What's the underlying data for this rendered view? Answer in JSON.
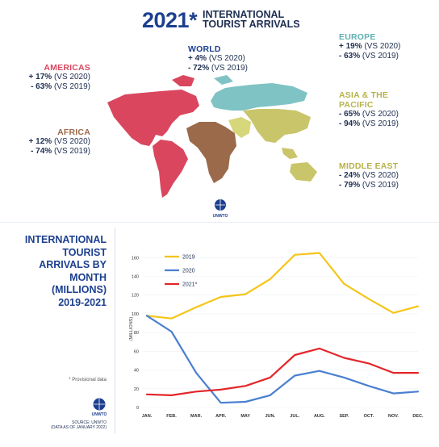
{
  "header": {
    "year": "2021*",
    "title_line1": "INTERNATIONAL",
    "title_line2": "TOURIST ARRIVALS"
  },
  "regions": {
    "world": {
      "name": "WORLD",
      "l1b": "+ 4%",
      "l1": " (VS 2020)",
      "l2b": "- 72%",
      "l2": " (VS 2019)"
    },
    "americas": {
      "name": "AMERICAS",
      "l1b": "+ 17%",
      "l1": " (VS 2020)",
      "l2b": "- 63%",
      "l2": " (VS 2019)"
    },
    "africa": {
      "name": "AFRICA",
      "l1b": "+ 12%",
      "l1": " (VS 2020)",
      "l2b": "- 74%",
      "l2": " (VS 2019)"
    },
    "europe": {
      "name": "EUROPE",
      "l1b": "+ 19%",
      "l1": " (VS 2020)",
      "l2b": "- 63%",
      "l2": " (VS 2019)"
    },
    "asia": {
      "name1": "ASIA & THE",
      "name2": "PACIFIC",
      "l1b": "- 65%",
      "l1": " (VS 2020)",
      "l2b": "- 94%",
      "l2": " (VS 2019)"
    },
    "middle_east": {
      "name": "MIDDLE EAST",
      "l1b": "- 24%",
      "l1": " (VS 2020)",
      "l2b": "- 79%",
      "l2": " (VS 2019)"
    }
  },
  "logo": {
    "text": "UNWTO"
  },
  "chart_title": [
    "INTERNATIONAL",
    "TOURIST",
    "ARRIVALS BY",
    "MONTH",
    "(MILLIONS)",
    "2019-2021"
  ],
  "provisional_note": "* Provisional data",
  "source_line1": "SOURCE: UNWTO",
  "source_line2": "(DATA AS OF JANUARY 2022)",
  "colors": {
    "americas": "#d9465e",
    "africa": "#9b6a4a",
    "europe": "#7fc3c4",
    "asia": "#c9c56a",
    "middle_east": "#d6d77a",
    "brand": "#1c3f8f",
    "s2019": "#f5c518",
    "s2020": "#4a7fd0",
    "s2021": "#e3262a"
  },
  "chart_data": {
    "type": "line",
    "ylabel": "(MILLIONS)",
    "categories": [
      "JAN.",
      "FEB.",
      "MAR.",
      "APR.",
      "MAY",
      "JUN.",
      "JUL.",
      "AUG.",
      "SEP.",
      "OCT.",
      "NOV.",
      "DEC."
    ],
    "yticks": [
      0,
      20,
      40,
      60,
      80,
      100,
      120,
      140,
      160
    ],
    "ylim": [
      0,
      168
    ],
    "legend": "top-left",
    "series": [
      {
        "name": "2019",
        "color": "#f5c518",
        "values": [
          98,
          95,
          107,
          118,
          121,
          137,
          163,
          165,
          132,
          116,
          101,
          108
        ]
      },
      {
        "name": "2020",
        "color": "#4a7fd0",
        "values": [
          98,
          81,
          37,
          5,
          6,
          13,
          34,
          39,
          32,
          23,
          15,
          17
        ]
      },
      {
        "name": "2021*",
        "color": "#e3262a",
        "values": [
          14,
          13,
          17,
          19,
          23,
          32,
          56,
          63,
          53,
          47,
          37,
          37
        ]
      }
    ]
  }
}
